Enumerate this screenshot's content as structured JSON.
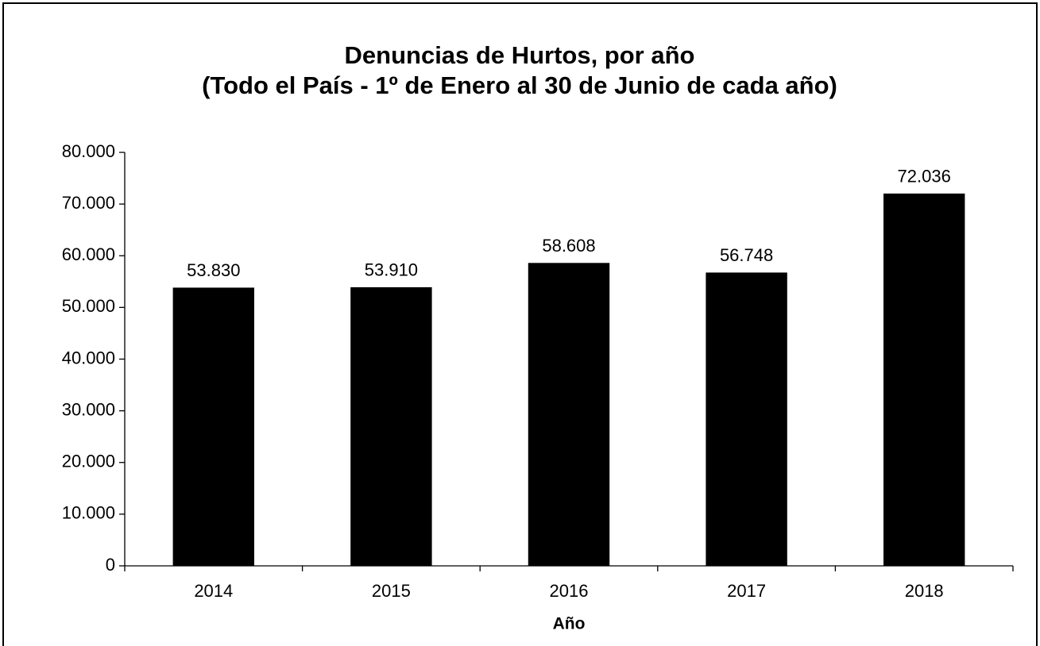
{
  "chart_data": {
    "type": "bar",
    "title": "Denuncias de Hurtos, por año",
    "subtitle": "(Todo el País - 1º de Enero al 30 de Junio de cada año)",
    "x_label": "Año",
    "categories": [
      "2014",
      "2015",
      "2016",
      "2017",
      "2018"
    ],
    "values": [
      53830,
      53910,
      58608,
      56748,
      72036
    ],
    "value_labels": [
      "53.830",
      "53.910",
      "58.608",
      "56.748",
      "72.036"
    ],
    "color": "#000000",
    "ylim": [
      0,
      80000
    ],
    "yticks": [
      0,
      {
        "value": 10000,
        "label": "10.000"
      },
      {
        "value": 20000,
        "label": "20.000"
      },
      {
        "value": 30000,
        "label": "30.000"
      },
      {
        "value": 40000,
        "label": "40.000"
      },
      {
        "value": 50000,
        "label": "50.000"
      },
      {
        "value": 60000,
        "label": "60.000"
      },
      {
        "value": 70000,
        "label": "70.000"
      },
      {
        "value": 80000,
        "label": "80.000"
      }
    ],
    "grid": false
  }
}
